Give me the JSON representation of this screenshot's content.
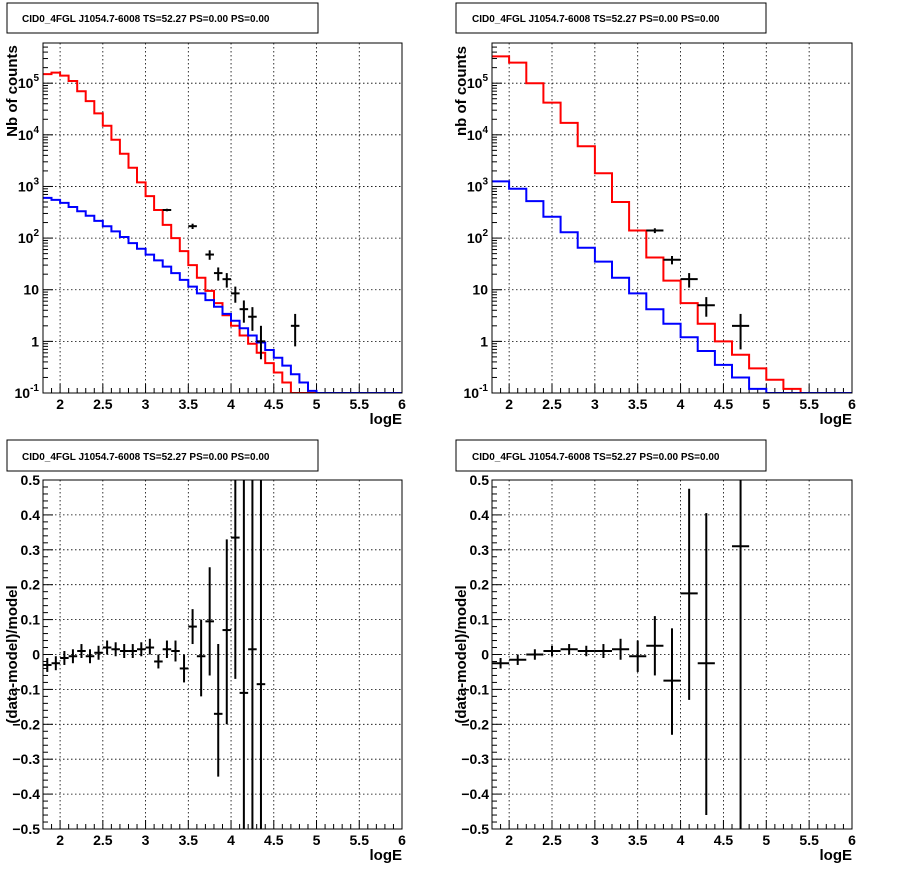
{
  "panels": [
    {
      "title": "CID0_4FGL J1054.7-6008 TS=52.27 PS=0.00 PS=0.00"
    },
    {
      "title": "CID0_4FGL J1054.7-6008 TS=52.27 PS=0.00 PS=0.00"
    },
    {
      "title": "CID0_4FGL J1054.7-6008 TS=52.27 PS=0.00 PS=0.00"
    },
    {
      "title": "CID0_4FGL J1054.7-6008 TS=52.27 PS=0.00 PS=0.00"
    }
  ],
  "colors": {
    "model_total": "#ff0000",
    "model_background": "#0000ff",
    "data": "#000000"
  },
  "chart_data": [
    {
      "type": "line",
      "title": "CID0_4FGL J1054.7-6008 TS=52.27 PS=0.00 PS=0.00",
      "xlabel": "logE",
      "ylabel": "Nb of counts",
      "xlim": [
        1.8,
        6
      ],
      "ylim": [
        0.1,
        600000
      ],
      "ylog": true,
      "grid": true,
      "x_ticks": [
        "2",
        "2.5",
        "3",
        "3.5",
        "4",
        "4.5",
        "5",
        "5.5",
        "6"
      ],
      "y_ticks": [
        {
          "v": 0.1,
          "label": "10^-1"
        },
        {
          "v": 1,
          "label": "1"
        },
        {
          "v": 10,
          "label": "10"
        },
        {
          "v": 100,
          "label": "10^2"
        },
        {
          "v": 1000,
          "label": "10^3"
        },
        {
          "v": 10000,
          "label": "10^4"
        },
        {
          "v": 100000,
          "label": "10^5"
        }
      ],
      "bin_edges": [
        1.8,
        1.9,
        2.0,
        2.1,
        2.2,
        2.3,
        2.4,
        2.5,
        2.6,
        2.7,
        2.8,
        2.9,
        3.0,
        3.1,
        3.2,
        3.3,
        3.4,
        3.5,
        3.6,
        3.7,
        3.8,
        3.9,
        4.0,
        4.1,
        4.2,
        4.3,
        4.4,
        4.5,
        4.6,
        4.7,
        4.8,
        4.9,
        5.0,
        5.1,
        5.2,
        5.3,
        5.4,
        5.5,
        5.6,
        5.7,
        5.8,
        5.9,
        6.0
      ],
      "series": [
        {
          "color": "#ff0000",
          "values": [
            150000,
            160000,
            140000,
            110000,
            70000,
            45000,
            26000,
            15000,
            8000,
            4300,
            2300,
            1200,
            650,
            350,
            180,
            100,
            56,
            30,
            17,
            9.5,
            5.5,
            3.2,
            2.0,
            1.3,
            0.9,
            0.6,
            0.38,
            0.25,
            0.16,
            0.1,
            0.1,
            0.1,
            0.1,
            0.1,
            0.1,
            0.1,
            0.1,
            0.1,
            0.1,
            0.1,
            0.1,
            0.1
          ]
        },
        {
          "color": "#0000ff",
          "values": [
            600,
            550,
            480,
            400,
            330,
            270,
            215,
            170,
            135,
            105,
            80,
            62,
            48,
            37,
            28,
            21,
            15.5,
            11.5,
            8.5,
            6.3,
            4.7,
            3.4,
            2.5,
            1.8,
            1.3,
            0.95,
            0.68,
            0.48,
            0.34,
            0.23,
            0.16,
            0.11,
            0.1,
            0.1,
            0.1,
            0.1,
            0.1,
            0.1,
            0.1,
            0.1,
            0.1,
            0.1
          ]
        }
      ],
      "points": [
        {
          "x": 3.25,
          "y": 350,
          "xe": 0.05,
          "ylo": 330,
          "yhi": 370
        },
        {
          "x": 3.55,
          "y": 170,
          "xe": 0.05,
          "ylo": 150,
          "yhi": 190
        },
        {
          "x": 3.75,
          "y": 48,
          "xe": 0.05,
          "ylo": 38,
          "yhi": 58
        },
        {
          "x": 3.85,
          "y": 21,
          "xe": 0.05,
          "ylo": 15,
          "yhi": 27
        },
        {
          "x": 3.95,
          "y": 16,
          "xe": 0.05,
          "ylo": 11,
          "yhi": 21
        },
        {
          "x": 4.05,
          "y": 8.5,
          "xe": 0.05,
          "ylo": 5.6,
          "yhi": 11.5
        },
        {
          "x": 4.15,
          "y": 4.2,
          "xe": 0.05,
          "ylo": 2.3,
          "yhi": 6.2
        },
        {
          "x": 4.25,
          "y": 3.0,
          "xe": 0.05,
          "ylo": 1.6,
          "yhi": 4.6
        },
        {
          "x": 4.35,
          "y": 1.0,
          "xe": 0.05,
          "ylo": 0.45,
          "yhi": 2.0
        },
        {
          "x": 4.75,
          "y": 2.0,
          "xe": 0.05,
          "ylo": 0.8,
          "yhi": 3.4
        }
      ]
    },
    {
      "type": "line",
      "title": "CID0_4FGL J1054.7-6008 TS=52.27 PS=0.00 PS=0.00",
      "xlabel": "logE",
      "ylabel": "nb of counts",
      "xlim": [
        1.8,
        6
      ],
      "ylim": [
        0.1,
        600000
      ],
      "ylog": true,
      "grid": true,
      "x_ticks": [
        "2",
        "2.5",
        "3",
        "3.5",
        "4",
        "4.5",
        "5",
        "5.5",
        "6"
      ],
      "y_ticks": [
        {
          "v": 0.1,
          "label": "10^-1"
        },
        {
          "v": 1,
          "label": "1"
        },
        {
          "v": 10,
          "label": "10"
        },
        {
          "v": 100,
          "label": "10^2"
        },
        {
          "v": 1000,
          "label": "10^3"
        },
        {
          "v": 10000,
          "label": "10^4"
        },
        {
          "v": 100000,
          "label": "10^5"
        }
      ],
      "bin_edges": [
        1.8,
        2.0,
        2.2,
        2.4,
        2.6,
        2.8,
        3.0,
        3.2,
        3.4,
        3.6,
        3.8,
        4.0,
        4.2,
        4.4,
        4.6,
        4.8,
        5.0,
        5.2,
        5.4,
        5.6,
        5.8,
        6.0
      ],
      "series": [
        {
          "color": "#ff0000",
          "values": [
            330000,
            250000,
            100000,
            42000,
            17000,
            6000,
            1800,
            500,
            140,
            42,
            15,
            5.5,
            2.2,
            1.0,
            0.55,
            0.3,
            0.18,
            0.12,
            0.1,
            0.1,
            0.1
          ]
        },
        {
          "color": "#0000ff",
          "values": [
            1250,
            900,
            520,
            260,
            130,
            65,
            35,
            17,
            8.5,
            4.2,
            2.2,
            1.2,
            0.65,
            0.35,
            0.2,
            0.12,
            0.1,
            0.1,
            0.1,
            0.1,
            0.1
          ]
        }
      ],
      "points": [
        {
          "x": 3.7,
          "y": 140,
          "xe": 0.1,
          "ylo": 125,
          "yhi": 155
        },
        {
          "x": 3.9,
          "y": 38,
          "xe": 0.1,
          "ylo": 31,
          "yhi": 45
        },
        {
          "x": 4.1,
          "y": 16,
          "xe": 0.1,
          "ylo": 11,
          "yhi": 21
        },
        {
          "x": 4.3,
          "y": 5.0,
          "xe": 0.1,
          "ylo": 3.0,
          "yhi": 7.2
        },
        {
          "x": 4.7,
          "y": 2.0,
          "xe": 0.1,
          "ylo": 0.7,
          "yhi": 3.4
        }
      ]
    },
    {
      "type": "scatter",
      "title": "CID0_4FGL J1054.7-6008 TS=52.27 PS=0.00 PS=0.00",
      "xlabel": "logE",
      "ylabel": "(data-model)/model",
      "xlim": [
        1.8,
        6
      ],
      "ylim": [
        -0.5,
        0.5
      ],
      "grid": true,
      "x_ticks": [
        "2",
        "2.5",
        "3",
        "3.5",
        "4",
        "4.5",
        "5",
        "5.5",
        "6"
      ],
      "y_ticks": [
        "−0.5",
        "−0.4",
        "−0.3",
        "−0.2",
        "−0.1",
        "0",
        "0.1",
        "0.2",
        "0.3",
        "0.4",
        "0.5"
      ],
      "points": [
        {
          "x": 1.85,
          "y": -0.03,
          "xe": 0.05,
          "ylo": -0.05,
          "yhi": -0.01
        },
        {
          "x": 1.95,
          "y": -0.025,
          "xe": 0.05,
          "ylo": -0.045,
          "yhi": -0.005
        },
        {
          "x": 2.05,
          "y": -0.01,
          "xe": 0.05,
          "ylo": -0.03,
          "yhi": 0.01
        },
        {
          "x": 2.15,
          "y": -0.005,
          "xe": 0.05,
          "ylo": -0.025,
          "yhi": 0.015
        },
        {
          "x": 2.25,
          "y": 0.01,
          "xe": 0.05,
          "ylo": -0.01,
          "yhi": 0.03
        },
        {
          "x": 2.35,
          "y": -0.005,
          "xe": 0.05,
          "ylo": -0.025,
          "yhi": 0.015
        },
        {
          "x": 2.45,
          "y": 0.005,
          "xe": 0.05,
          "ylo": -0.015,
          "yhi": 0.025
        },
        {
          "x": 2.55,
          "y": 0.02,
          "xe": 0.05,
          "ylo": 0.0,
          "yhi": 0.04
        },
        {
          "x": 2.65,
          "y": 0.015,
          "xe": 0.05,
          "ylo": -0.005,
          "yhi": 0.035
        },
        {
          "x": 2.75,
          "y": 0.01,
          "xe": 0.05,
          "ylo": -0.01,
          "yhi": 0.03
        },
        {
          "x": 2.85,
          "y": 0.01,
          "xe": 0.05,
          "ylo": -0.01,
          "yhi": 0.03
        },
        {
          "x": 2.95,
          "y": 0.015,
          "xe": 0.05,
          "ylo": -0.005,
          "yhi": 0.035
        },
        {
          "x": 3.05,
          "y": 0.02,
          "xe": 0.05,
          "ylo": 0.0,
          "yhi": 0.045
        },
        {
          "x": 3.15,
          "y": -0.02,
          "xe": 0.05,
          "ylo": -0.04,
          "yhi": 0.0
        },
        {
          "x": 3.25,
          "y": 0.015,
          "xe": 0.05,
          "ylo": -0.01,
          "yhi": 0.04
        },
        {
          "x": 3.35,
          "y": 0.01,
          "xe": 0.05,
          "ylo": -0.02,
          "yhi": 0.04
        },
        {
          "x": 3.45,
          "y": -0.04,
          "xe": 0.05,
          "ylo": -0.08,
          "yhi": 0.0
        },
        {
          "x": 3.55,
          "y": 0.08,
          "xe": 0.05,
          "ylo": 0.03,
          "yhi": 0.13
        },
        {
          "x": 3.65,
          "y": -0.005,
          "xe": 0.05,
          "ylo": -0.12,
          "yhi": 0.1
        },
        {
          "x": 3.75,
          "y": 0.095,
          "xe": 0.05,
          "ylo": -0.06,
          "yhi": 0.25
        },
        {
          "x": 3.85,
          "y": -0.17,
          "xe": 0.05,
          "ylo": -0.35,
          "yhi": 0.03
        },
        {
          "x": 3.95,
          "y": 0.07,
          "xe": 0.05,
          "ylo": -0.2,
          "yhi": 0.33
        },
        {
          "x": 4.05,
          "y": 0.335,
          "xe": 0.05,
          "ylo": -0.07,
          "yhi": 0.5
        },
        {
          "x": 4.15,
          "y": -0.11,
          "xe": 0.05,
          "ylo": -0.5,
          "yhi": 0.5
        },
        {
          "x": 4.25,
          "y": 0.015,
          "xe": 0.05,
          "ylo": -0.5,
          "yhi": 0.5
        },
        {
          "x": 4.35,
          "y": -0.085,
          "xe": 0.05,
          "ylo": -0.5,
          "yhi": 0.5
        }
      ]
    },
    {
      "type": "scatter",
      "title": "CID0_4FGL J1054.7-6008 TS=52.27 PS=0.00 PS=0.00",
      "xlabel": "logE",
      "ylabel": "(data-model)/model",
      "xlim": [
        1.8,
        6
      ],
      "ylim": [
        -0.5,
        0.5
      ],
      "grid": true,
      "x_ticks": [
        "2",
        "2.5",
        "3",
        "3.5",
        "4",
        "4.5",
        "5",
        "5.5",
        "6"
      ],
      "y_ticks": [
        "−0.5",
        "−0.4",
        "−0.3",
        "−0.2",
        "−0.1",
        "0",
        "0.1",
        "0.2",
        "0.3",
        "0.4",
        "0.5"
      ],
      "points": [
        {
          "x": 1.9,
          "y": -0.025,
          "xe": 0.1,
          "ylo": -0.04,
          "yhi": -0.01
        },
        {
          "x": 2.1,
          "y": -0.015,
          "xe": 0.1,
          "ylo": -0.03,
          "yhi": 0.0
        },
        {
          "x": 2.3,
          "y": 0.0,
          "xe": 0.1,
          "ylo": -0.015,
          "yhi": 0.015
        },
        {
          "x": 2.5,
          "y": 0.01,
          "xe": 0.1,
          "ylo": -0.005,
          "yhi": 0.025
        },
        {
          "x": 2.7,
          "y": 0.015,
          "xe": 0.1,
          "ylo": 0.0,
          "yhi": 0.03
        },
        {
          "x": 2.9,
          "y": 0.01,
          "xe": 0.1,
          "ylo": -0.005,
          "yhi": 0.025
        },
        {
          "x": 3.1,
          "y": 0.01,
          "xe": 0.1,
          "ylo": -0.01,
          "yhi": 0.03
        },
        {
          "x": 3.3,
          "y": 0.015,
          "xe": 0.1,
          "ylo": -0.015,
          "yhi": 0.045
        },
        {
          "x": 3.5,
          "y": -0.005,
          "xe": 0.1,
          "ylo": -0.05,
          "yhi": 0.04
        },
        {
          "x": 3.7,
          "y": 0.025,
          "xe": 0.1,
          "ylo": -0.06,
          "yhi": 0.11
        },
        {
          "x": 3.9,
          "y": -0.075,
          "xe": 0.1,
          "ylo": -0.23,
          "yhi": 0.075
        },
        {
          "x": 4.1,
          "y": 0.175,
          "xe": 0.1,
          "ylo": -0.13,
          "yhi": 0.475
        },
        {
          "x": 4.3,
          "y": -0.025,
          "xe": 0.1,
          "ylo": -0.46,
          "yhi": 0.405
        },
        {
          "x": 4.7,
          "y": 0.31,
          "xe": 0.1,
          "ylo": -0.5,
          "yhi": 0.5
        }
      ]
    }
  ]
}
